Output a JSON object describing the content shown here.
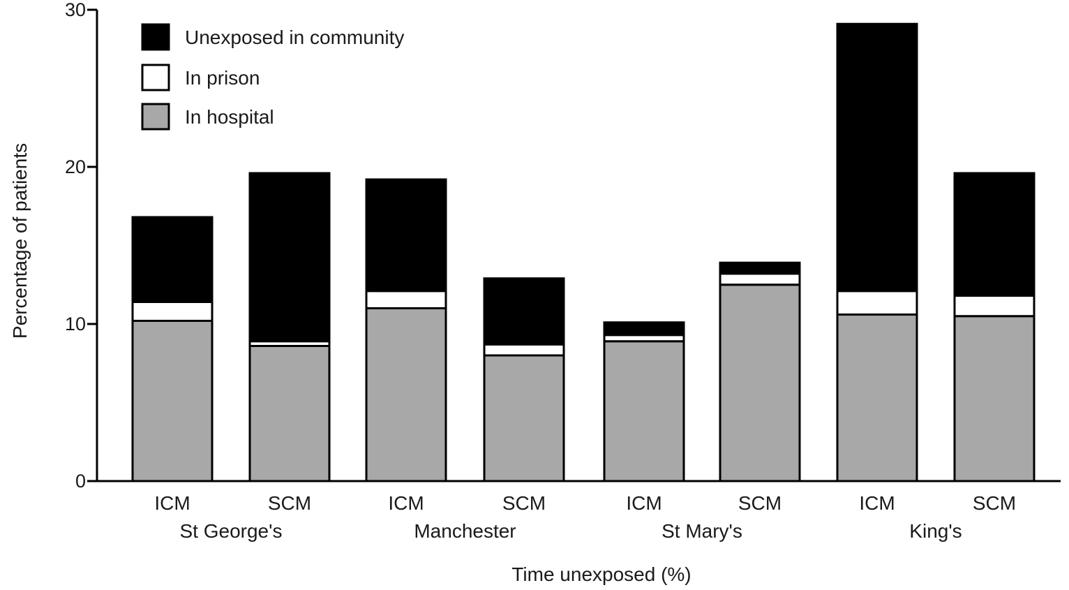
{
  "chart_data": {
    "type": "bar",
    "stacked": true,
    "title": "",
    "xlabel": "Time unexposed (%)",
    "ylabel": "Percentage of patients",
    "ylim": [
      0,
      30
    ],
    "yticks": [
      "0",
      "10",
      "20",
      "30"
    ],
    "grid": false,
    "legend_position": "top-left",
    "categories": [
      "ICM",
      "SCM",
      "ICM",
      "SCM",
      "ICM",
      "SCM",
      "ICM",
      "SCM"
    ],
    "groups": [
      {
        "label": "St George's",
        "categories": [
          "ICM",
          "SCM"
        ]
      },
      {
        "label": "Manchester",
        "categories": [
          "ICM",
          "SCM"
        ]
      },
      {
        "label": "St Mary's",
        "categories": [
          "ICM",
          "SCM"
        ]
      },
      {
        "label": "King's",
        "categories": [
          "ICM",
          "SCM"
        ]
      }
    ],
    "series": [
      {
        "name": "In hospital",
        "color": "#a8a8a8",
        "values": [
          10.2,
          8.6,
          11.0,
          8.0,
          8.9,
          12.5,
          10.6,
          10.5
        ]
      },
      {
        "name": "In prison",
        "color": "#ffffff",
        "values": [
          1.2,
          0.3,
          1.1,
          0.7,
          0.4,
          0.7,
          1.5,
          1.3
        ]
      },
      {
        "name": "Unexposed in community",
        "color": "#000000",
        "values": [
          5.4,
          10.7,
          7.1,
          4.2,
          0.8,
          0.7,
          17.0,
          7.8
        ]
      }
    ],
    "legend_order": [
      "Unexposed in community",
      "In prison",
      "In hospital"
    ]
  }
}
